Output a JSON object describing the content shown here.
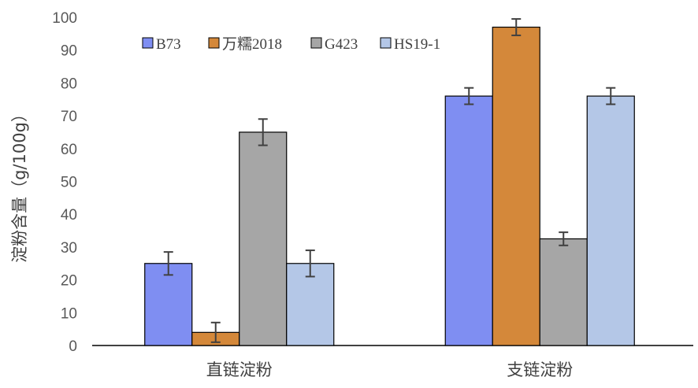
{
  "chart_data": {
    "type": "bar",
    "title": "",
    "xlabel": "",
    "ylabel": "淀粉含量（g/100g）",
    "ylim": [
      0,
      100
    ],
    "yticks": [
      0,
      10,
      20,
      30,
      40,
      50,
      60,
      70,
      80,
      90,
      100
    ],
    "categories": [
      "直链淀粉",
      "支链淀粉"
    ],
    "series": [
      {
        "name": "B73",
        "color": "#7f8ef2",
        "values": [
          25,
          76
        ],
        "errors": [
          3.5,
          2.5
        ]
      },
      {
        "name": "万糯2018",
        "color": "#d4883a",
        "values": [
          4,
          97
        ],
        "errors": [
          3,
          2.5
        ]
      },
      {
        "name": "G423",
        "color": "#a6a6a6",
        "values": [
          65,
          32.5
        ],
        "errors": [
          4,
          2
        ]
      },
      {
        "name": "HS19-1",
        "color": "#b4c7e7",
        "values": [
          25,
          76
        ],
        "errors": [
          4,
          2.5
        ]
      }
    ],
    "error_bars": true,
    "grid": false,
    "legend_position": "top-left"
  }
}
